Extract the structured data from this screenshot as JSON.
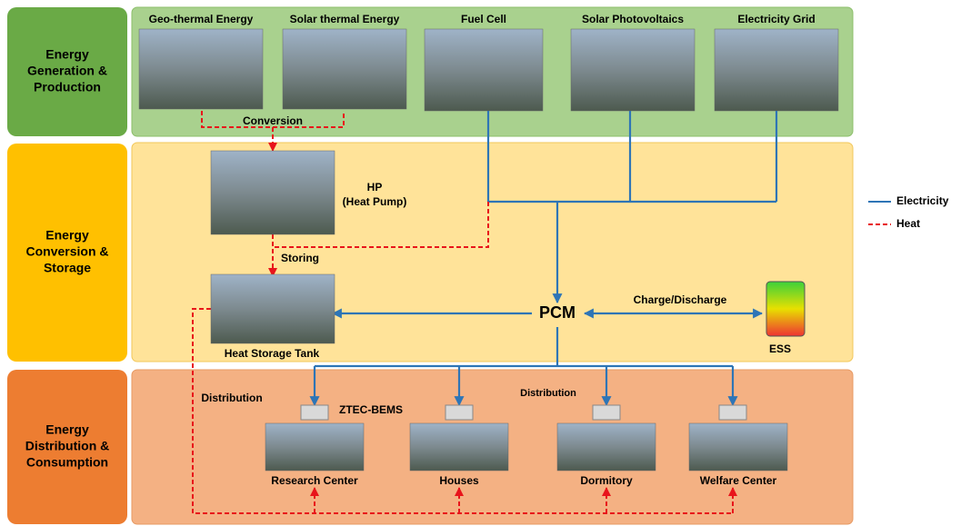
{
  "rows": [
    {
      "label_lines": [
        "Energy",
        "Generation &",
        "Production"
      ]
    },
    {
      "label_lines": [
        "Energy",
        "Conversion &",
        "Storage"
      ]
    },
    {
      "label_lines": [
        "Energy",
        "Distribution &",
        "Consumption"
      ]
    }
  ],
  "sources": [
    "Geo-thermal Energy",
    "Solar thermal Energy",
    "Fuel Cell",
    "Solar Photovoltaics",
    "Electricity Grid"
  ],
  "conversion": "Conversion",
  "heat_pump": {
    "lines": [
      "HP",
      "(Heat Pump)"
    ]
  },
  "storing": "Storing",
  "heat_storage_tank": "Heat Storage Tank",
  "pcm": "PCM",
  "charge_discharge": "Charge/Discharge",
  "ess": "ESS",
  "distribution_labels": [
    "Distribution",
    "Distribution"
  ],
  "bems": "ZTEC-BEMS",
  "consumers": [
    "Research Center",
    "Houses",
    "Dormitory",
    "Welfare Center"
  ],
  "legend": [
    {
      "name": "Electricity",
      "color": "#2e75b6"
    },
    {
      "name": "Heat",
      "color": "#e8141b"
    }
  ]
}
